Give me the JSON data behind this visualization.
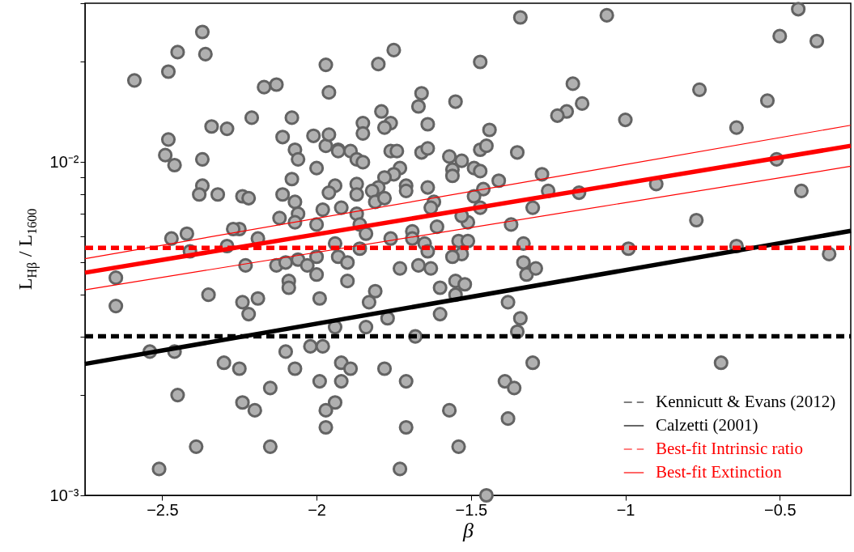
{
  "chart_data": {
    "type": "scatter",
    "xlabel": "β",
    "ylabel": "L$_{Hβ}$ / L$_{1600}$",
    "log": "y",
    "grid": false,
    "legend": "bottom right",
    "xlim": [
      -2.75,
      -0.27
    ],
    "ylim": [
      0.001,
      0.03
    ],
    "xticks": [
      -2.5,
      -2,
      -1.5,
      -1,
      -0.5
    ],
    "yticks": [
      {
        "value": 0.001,
        "label": "10⁻³"
      },
      {
        "value": 0.002,
        "label": null
      },
      {
        "value": 0.003,
        "label": null
      },
      {
        "value": 0.004,
        "label": null
      },
      {
        "value": 0.005,
        "label": null
      },
      {
        "value": 0.006,
        "label": null
      },
      {
        "value": 0.007,
        "label": null
      },
      {
        "value": 0.008,
        "label": null
      },
      {
        "value": 0.009,
        "label": null
      },
      {
        "value": 0.01,
        "label": "10⁻²"
      },
      {
        "value": 0.02,
        "label": null
      },
      {
        "value": 0.03,
        "label": null
      }
    ],
    "series": [
      {
        "type": "scatter",
        "color": "#b0b0b0",
        "marker": "circle",
        "x": [
          -2.59,
          -2.48,
          -2.45,
          -2.37,
          -2.36,
          -1.97,
          -1.96,
          -2.17,
          -2.13,
          -2.21,
          -2.08,
          -2.34,
          -2.29,
          -2.48,
          -2.49,
          -2.46,
          -2.37,
          -2.11,
          -2.07,
          -2.06,
          -2.0,
          -2.01,
          -1.97,
          -1.96,
          -1.93,
          -2.08,
          -1.94,
          -2.37,
          -2.38,
          -2.32,
          -2.24,
          -2.22,
          -2.11,
          -2.07,
          -1.96,
          -1.98,
          -1.92,
          -2.06,
          -2.12,
          -2.07,
          -2.0,
          -2.25,
          -2.27,
          -2.42,
          -2.47,
          -2.41,
          -2.29,
          -2.19,
          -1.94,
          -2.0,
          -1.93,
          -2.23,
          -2.13,
          -2.1,
          -2.06,
          -2.03,
          -2.65,
          -2.65,
          -2.35,
          -2.24,
          -2.19,
          -2.22,
          -2.09,
          -2.09,
          -2.0,
          -1.99,
          -1.94,
          -2.02,
          -1.98,
          -1.92,
          -1.92,
          -1.99,
          -2.1,
          -2.07,
          -2.54,
          -2.46,
          -2.3,
          -2.25,
          -2.15,
          -2.45,
          -2.24,
          -2.2,
          -1.94,
          -1.97,
          -1.97,
          -2.39,
          -2.15,
          -2.51,
          -1.34,
          -1.75,
          -1.8,
          -1.47,
          -1.66,
          -1.67,
          -1.55,
          -1.17,
          -1.14,
          -1.19,
          -1.22,
          -1.79,
          -1.85,
          -1.76,
          -1.78,
          -1.85,
          -1.64,
          -1.44,
          -1.47,
          -1.45,
          -1.35,
          -1.93,
          -1.89,
          -1.87,
          -1.85,
          -1.76,
          -1.74,
          -1.73,
          -1.75,
          -1.78,
          -1.66,
          -1.64,
          -1.57,
          -1.53,
          -1.56,
          -1.56,
          -1.49,
          -1.47,
          -1.41,
          -1.27,
          -1.25,
          -1.15,
          -1.87,
          -1.8,
          -1.82,
          -1.87,
          -1.81,
          -1.78,
          -1.71,
          -1.71,
          -1.64,
          -1.62,
          -1.63,
          -1.46,
          -1.49,
          -1.47,
          -1.87,
          -1.3,
          -1.37,
          -1.51,
          -1.53,
          -1.61,
          -1.86,
          -1.84,
          -1.76,
          -1.69,
          -1.69,
          -1.65,
          -1.64,
          -1.54,
          -1.51,
          -1.53,
          -1.56,
          -1.33,
          -1.86,
          -1.9,
          -1.73,
          -1.67,
          -1.63,
          -1.33,
          -1.32,
          -1.29,
          -1.9,
          -1.81,
          -1.83,
          -1.6,
          -1.55,
          -1.52,
          -1.55,
          -1.6,
          -1.77,
          -1.84,
          -1.68,
          -1.38,
          -1.34,
          -1.35,
          -1.89,
          -1.78,
          -1.71,
          -1.3,
          -1.39,
          -1.36,
          -1.57,
          -1.38,
          -1.71,
          -1.54,
          -1.73,
          -1.45,
          -1.06,
          -0.5,
          -0.44,
          -0.38,
          -0.76,
          -0.54,
          -0.64,
          -1.0,
          -0.51,
          -0.9,
          -0.43,
          -0.77,
          -0.99,
          -0.64,
          -0.34,
          -0.69
        ],
        "values": [
          0.0176,
          0.0187,
          0.0214,
          0.0246,
          0.0211,
          0.0196,
          0.0162,
          0.0168,
          0.0171,
          0.0136,
          0.0136,
          0.0128,
          0.0126,
          0.0117,
          0.0105,
          0.0098,
          0.0102,
          0.0119,
          0.0109,
          0.0102,
          0.0096,
          0.012,
          0.0112,
          0.0121,
          0.0109,
          0.0089,
          0.0085,
          0.0085,
          0.008,
          0.008,
          0.0079,
          0.0078,
          0.008,
          0.0076,
          0.0081,
          0.0072,
          0.0073,
          0.007,
          0.0068,
          0.0066,
          0.0065,
          0.0063,
          0.0063,
          0.0061,
          0.0059,
          0.0054,
          0.0056,
          0.0059,
          0.0057,
          0.0052,
          0.0052,
          0.0049,
          0.0049,
          0.005,
          0.0051,
          0.0049,
          0.0045,
          0.0037,
          0.004,
          0.0038,
          0.0039,
          0.0035,
          0.0044,
          0.0042,
          0.0046,
          0.0039,
          0.0032,
          0.0028,
          0.0028,
          0.0025,
          0.0022,
          0.0022,
          0.0027,
          0.0024,
          0.0027,
          0.0027,
          0.0025,
          0.0024,
          0.0021,
          0.002,
          0.0019,
          0.0018,
          0.0019,
          0.0018,
          0.0016,
          0.0014,
          0.0014,
          0.0012,
          0.0272,
          0.0217,
          0.0197,
          0.02,
          0.0161,
          0.0147,
          0.0152,
          0.0172,
          0.015,
          0.0142,
          0.0138,
          0.0142,
          0.0131,
          0.0131,
          0.0127,
          0.0122,
          0.013,
          0.0125,
          0.0109,
          0.0112,
          0.0107,
          0.0108,
          0.0108,
          0.0102,
          0.01,
          0.0108,
          0.0108,
          0.0096,
          0.0092,
          0.009,
          0.0107,
          0.011,
          0.0104,
          0.0101,
          0.0095,
          0.0091,
          0.0096,
          0.0094,
          0.0088,
          0.0092,
          0.0082,
          0.0081,
          0.0086,
          0.0084,
          0.0082,
          0.008,
          0.0076,
          0.0078,
          0.0085,
          0.0082,
          0.0084,
          0.0076,
          0.0073,
          0.0083,
          0.0079,
          0.0073,
          0.007,
          0.0073,
          0.0065,
          0.0066,
          0.0069,
          0.0064,
          0.0065,
          0.0061,
          0.0059,
          0.0062,
          0.0059,
          0.0057,
          0.0054,
          0.0058,
          0.0058,
          0.0053,
          0.0052,
          0.0057,
          0.0055,
          0.005,
          0.0048,
          0.0049,
          0.0048,
          0.005,
          0.0046,
          0.0048,
          0.0044,
          0.0041,
          0.0038,
          0.0042,
          0.0044,
          0.0043,
          0.004,
          0.0035,
          0.0034,
          0.0032,
          0.003,
          0.0038,
          0.0034,
          0.0031,
          0.0024,
          0.0024,
          0.0022,
          0.0025,
          0.0022,
          0.0021,
          0.0018,
          0.0017,
          0.0016,
          0.0014,
          0.0012,
          0.001,
          0.0276,
          0.0239,
          0.0288,
          0.0231,
          0.0165,
          0.0153,
          0.0127,
          0.0134,
          0.0102,
          0.0086,
          0.0082,
          0.0067,
          0.0055,
          0.0056,
          0.0053,
          0.0025
        ]
      },
      {
        "type": "line",
        "name": "Kennicutt & Evans (2012)",
        "color": "#000000",
        "line_style": "dashed",
        "x": [
          -2.75,
          -0.27
        ],
        "values": [
          0.003,
          0.003
        ]
      },
      {
        "type": "line",
        "name": "Calzetti (2001)",
        "color": "#000000",
        "line_style": "solid",
        "x": [
          -2.75,
          -0.27
        ],
        "values": [
          0.00248,
          0.00622
        ]
      },
      {
        "type": "line",
        "name": "Best-fit Intrinsic ratio",
        "color": "#ff0000",
        "line_style": "dashed",
        "x": [
          -2.75,
          -0.27
        ],
        "values": [
          0.00553,
          0.00553
        ]
      },
      {
        "type": "line",
        "name": "Best-fit Extinction",
        "color": "#ff0000",
        "line_style": "solid",
        "x": [
          -2.75,
          -0.27
        ],
        "values": [
          0.00466,
          0.0112
        ]
      },
      {
        "type": "line",
        "color": "#ff0000",
        "line_style": "solid",
        "x": [
          -2.75,
          -0.27
        ],
        "values": [
          0.00513,
          0.01291
        ]
      },
      {
        "type": "line",
        "color": "#ff0000",
        "line_style": "solid",
        "x": [
          -2.75,
          -0.27
        ],
        "values": [
          0.00414,
          0.00972
        ]
      }
    ]
  }
}
